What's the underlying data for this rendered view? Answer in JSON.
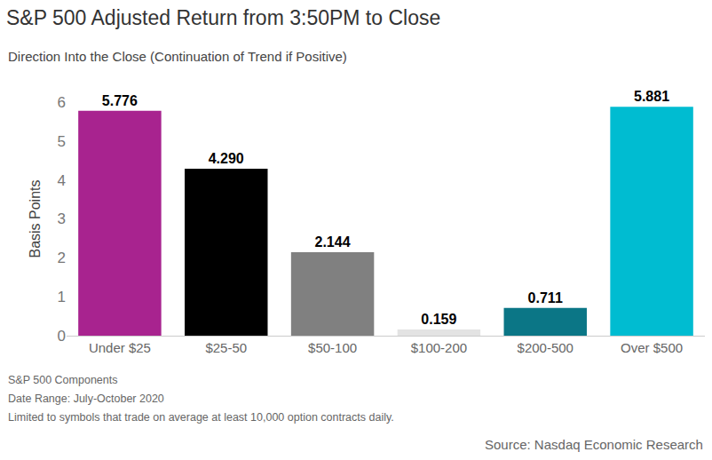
{
  "chart_data": {
    "type": "bar",
    "title": "S&P 500 Adjusted Return from 3:50PM to Close",
    "subtitle": "Direction Into the Close (Continuation of Trend if Positive)",
    "ylabel": "Basis Points",
    "categories": [
      "Under $25",
      "$25-50",
      "$50-100",
      "$100-200",
      "$200-500",
      "Over $500"
    ],
    "values": [
      5.776,
      4.29,
      2.144,
      0.159,
      0.711,
      5.881
    ],
    "value_labels": [
      "5.776",
      "4.290",
      "2.144",
      "0.159",
      "0.711",
      "5.881"
    ],
    "colors": [
      "#a8238f",
      "#000000",
      "#808080",
      "#e3e3e3",
      "#0b7686",
      "#00bcd1"
    ],
    "ylim": [
      0,
      6
    ],
    "yticks": [
      0,
      1,
      2,
      3,
      4,
      5,
      6
    ],
    "grid": false,
    "data_labels": true,
    "annotations": [
      "S&P 500 Components",
      "Date Range: July-October 2020",
      "Limited to symbols that trade on average at least 10,000 option contracts daily."
    ],
    "source": "Source: Nasdaq Economic Research"
  }
}
